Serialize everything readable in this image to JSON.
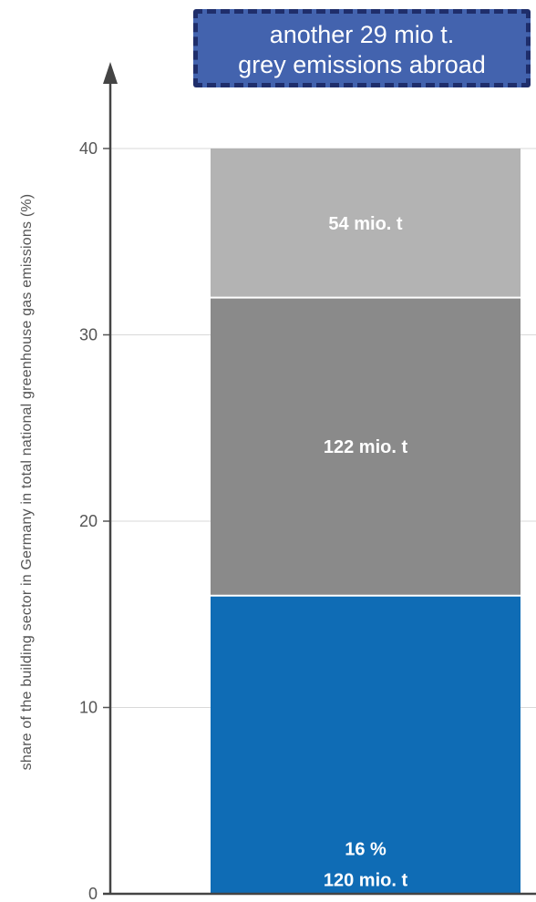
{
  "callout": {
    "line1": "another 29 mio t.",
    "line2": "grey emissions abroad"
  },
  "chart_data": {
    "type": "bar",
    "stacked": true,
    "categories": [
      ""
    ],
    "ylabel": "share of the building sector in Germany in total national greenhouse gas emissions  (%)",
    "ylim": [
      0,
      40
    ],
    "yticks": [
      0,
      10,
      20,
      30,
      40
    ],
    "grid": true,
    "series": [
      {
        "values": [
          16
        ],
        "label_lines": [
          "16 %",
          "120 mio. t"
        ],
        "color": "#0f6cb5"
      },
      {
        "values": [
          16
        ],
        "label_lines": [
          "122 mio. t"
        ],
        "color": "#8a8a8a"
      },
      {
        "values": [
          8
        ],
        "label_lines": [
          "54 mio. t"
        ],
        "color": "#b3b3b3"
      }
    ]
  }
}
